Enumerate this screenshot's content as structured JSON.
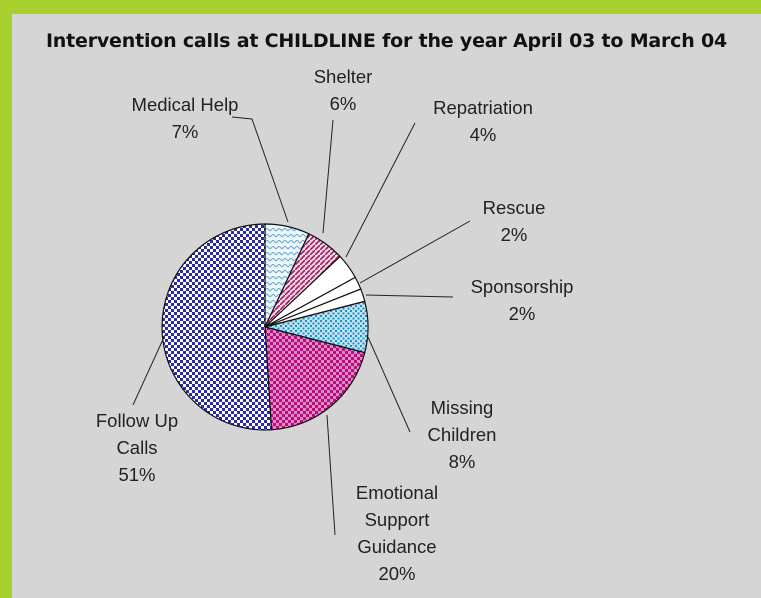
{
  "chart_data": {
    "type": "pie",
    "title": "Intervention calls at CHILDLINE for the year April 03 to March 04",
    "slices": [
      {
        "label_lines": [
          "Medical Help"
        ],
        "value_text": "7%",
        "value": 7
      },
      {
        "label_lines": [
          "Shelter"
        ],
        "value_text": "6%",
        "value": 6
      },
      {
        "label_lines": [
          "Repatriation"
        ],
        "value_text": "4%",
        "value": 4
      },
      {
        "label_lines": [
          "Rescue"
        ],
        "value_text": "2%",
        "value": 2
      },
      {
        "label_lines": [
          "Sponsorship"
        ],
        "value_text": "2%",
        "value": 2
      },
      {
        "label_lines": [
          "Missing",
          "Children"
        ],
        "value_text": "8%",
        "value": 8
      },
      {
        "label_lines": [
          "Emotional",
          "Support",
          "Guidance"
        ],
        "value_text": "20%",
        "value": 20
      },
      {
        "label_lines": [
          "Follow Up",
          "Calls"
        ],
        "value_text": "51%",
        "value": 51
      }
    ]
  },
  "colors": {
    "frame": "#a7cf2e",
    "panel": "#d5d5d5",
    "medical": "#d8ecf4",
    "shelter": "#b0306e",
    "repatriation": "#555555",
    "rescue": "#555555",
    "sponsorship": "#555555",
    "missing": "#1e8fbf",
    "emotional": "#c21b8c",
    "followup": "#2b2b9e"
  }
}
